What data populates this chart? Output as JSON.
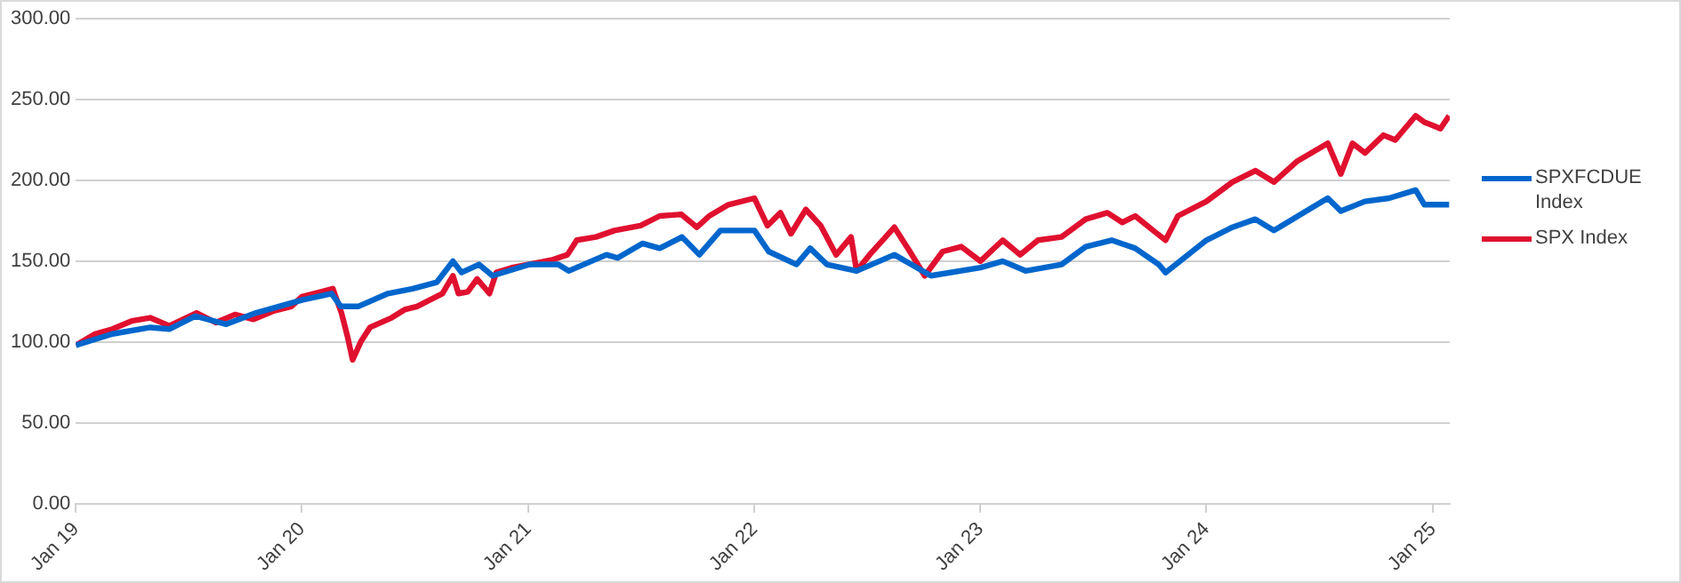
{
  "chart_data": {
    "type": "line",
    "xlim": [
      "2019-01-01",
      "2025-01-28"
    ],
    "ylim": [
      0,
      300
    ],
    "xticks": [
      {
        "value": "2019-01-01",
        "label": "Jan 19"
      },
      {
        "value": "2020-01-01",
        "label": "Jan 20"
      },
      {
        "value": "2021-01-01",
        "label": "Jan 21"
      },
      {
        "value": "2022-01-01",
        "label": "Jan 22"
      },
      {
        "value": "2023-01-01",
        "label": "Jan 23"
      },
      {
        "value": "2024-01-01",
        "label": "Jan 24"
      },
      {
        "value": "2025-01-01",
        "label": "Jan 25"
      }
    ],
    "yticks": [
      {
        "value": 0,
        "label": "0.00"
      },
      {
        "value": 50,
        "label": "50.00"
      },
      {
        "value": 100,
        "label": "100.00"
      },
      {
        "value": 150,
        "label": "150.00"
      },
      {
        "value": 200,
        "label": "200.00"
      },
      {
        "value": 250,
        "label": "250.00"
      },
      {
        "value": 300,
        "label": "300.00"
      }
    ],
    "grid": "y",
    "legend": "right",
    "marker": "none",
    "line_style": "solid",
    "series": [
      {
        "name": "SPXFCDUE Index",
        "color": "#0066cc",
        "x": [
          "2019-01-01",
          "2019-03-01",
          "2019-05-01",
          "2019-06-01",
          "2019-07-13",
          "2019-09-01",
          "2019-10-19",
          "2020-01-01",
          "2020-02-18",
          "2020-03-04",
          "2020-04-01",
          "2020-05-19",
          "2020-06-28",
          "2020-08-06",
          "2020-09-01",
          "2020-09-15",
          "2020-10-13",
          "2020-11-04",
          "2021-01-03",
          "2021-02-18",
          "2021-03-07",
          "2021-05-07",
          "2021-05-25",
          "2021-07-04",
          "2021-08-01",
          "2021-09-06",
          "2021-10-04",
          "2021-11-07",
          "2022-01-01",
          "2022-01-24",
          "2022-03-10",
          "2022-04-01",
          "2022-04-28",
          "2022-06-15",
          "2022-08-15",
          "2022-10-13",
          "2023-01-01",
          "2023-02-06",
          "2023-03-15",
          "2023-05-12",
          "2023-06-20",
          "2023-08-01",
          "2023-09-08",
          "2023-10-16",
          "2023-10-27",
          "2024-01-01",
          "2024-02-12",
          "2024-03-20",
          "2024-04-19",
          "2024-06-06",
          "2024-07-15",
          "2024-08-05",
          "2024-09-13",
          "2024-10-22",
          "2024-12-04",
          "2024-12-18",
          "2025-01-27"
        ],
        "values": [
          98,
          105,
          109,
          108,
          116,
          111,
          118,
          126,
          130,
          122,
          122,
          130,
          133,
          137,
          150,
          143,
          148,
          141,
          148,
          148,
          144,
          154,
          152,
          161,
          158,
          165,
          154,
          169,
          169,
          156,
          148,
          158,
          148,
          144,
          154,
          141,
          146,
          150,
          144,
          148,
          159,
          163,
          158,
          148,
          143,
          163,
          171,
          176,
          169,
          180,
          189,
          181,
          187,
          189,
          194,
          185,
          185
        ]
      },
      {
        "name": "SPX Index",
        "color": "#e0102f",
        "x": [
          "2019-01-01",
          "2019-02-01",
          "2019-03-01",
          "2019-04-01",
          "2019-05-01",
          "2019-06-01",
          "2019-07-15",
          "2019-08-15",
          "2019-09-15",
          "2019-10-15",
          "2019-11-15",
          "2019-12-15",
          "2020-01-01",
          "2020-02-01",
          "2020-02-20",
          "2020-03-05",
          "2020-03-15",
          "2020-03-23",
          "2020-04-05",
          "2020-04-20",
          "2020-05-25",
          "2020-06-15",
          "2020-07-05",
          "2020-08-15",
          "2020-09-01",
          "2020-09-10",
          "2020-09-25",
          "2020-10-10",
          "2020-10-30",
          "2020-11-10",
          "2020-12-05",
          "2021-01-01",
          "2021-02-10",
          "2021-03-05",
          "2021-03-20",
          "2021-04-20",
          "2021-05-20",
          "2021-07-01",
          "2021-08-01",
          "2021-09-05",
          "2021-09-30",
          "2021-10-20",
          "2021-11-20",
          "2022-01-01",
          "2022-01-22",
          "2022-02-12",
          "2022-03-01",
          "2022-03-25",
          "2022-04-18",
          "2022-05-13",
          "2022-06-06",
          "2022-06-15",
          "2022-07-06",
          "2022-08-15",
          "2022-09-09",
          "2022-10-03",
          "2022-11-01",
          "2022-12-01",
          "2023-01-01",
          "2023-02-06",
          "2023-03-06",
          "2023-04-04",
          "2023-05-12",
          "2023-06-20",
          "2023-07-25",
          "2023-08-18",
          "2023-09-08",
          "2023-10-07",
          "2023-10-27",
          "2023-11-16",
          "2024-01-01",
          "2024-02-12",
          "2024-03-20",
          "2024-04-19",
          "2024-05-27",
          "2024-07-15",
          "2024-08-05",
          "2024-08-24",
          "2024-09-13",
          "2024-10-13",
          "2024-11-01",
          "2024-12-04",
          "2024-12-18",
          "2025-01-01",
          "2025-01-13",
          "2025-01-27"
        ],
        "values": [
          98,
          105,
          108,
          113,
          115,
          110,
          118,
          112,
          117,
          114,
          119,
          122,
          128,
          131,
          133,
          118,
          103,
          89,
          100,
          109,
          115,
          120,
          122,
          130,
          141,
          130,
          131,
          139,
          130,
          143,
          146,
          148,
          151,
          154,
          163,
          165,
          169,
          172,
          178,
          179,
          171,
          178,
          185,
          189,
          172,
          180,
          167,
          182,
          172,
          154,
          165,
          144,
          154,
          171,
          156,
          141,
          156,
          159,
          150,
          163,
          154,
          163,
          165,
          176,
          180,
          174,
          178,
          169,
          163,
          178,
          187,
          199,
          206,
          199,
          212,
          223,
          204,
          223,
          217,
          228,
          225,
          240,
          236,
          234,
          232,
          240
        ]
      }
    ]
  }
}
